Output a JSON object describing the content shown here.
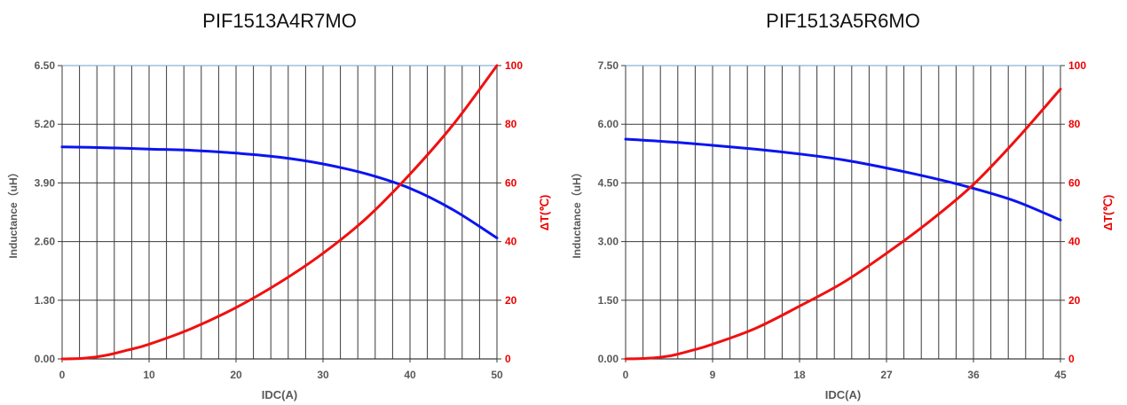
{
  "chart_data": [
    {
      "type": "line",
      "title": "PIF1513A4R7MO",
      "xlabel": "IDC(A)",
      "ylabel": "Inductance（uH）",
      "y2label": "ΔT(℃)",
      "xlim": [
        0,
        50
      ],
      "ylim": [
        0,
        6.5
      ],
      "y2lim": [
        0,
        100
      ],
      "x_ticks": [
        "0",
        "10",
        "20",
        "30",
        "40",
        "50"
      ],
      "y_ticks": [
        "0.00",
        "1.30",
        "2.60",
        "3.90",
        "5.20",
        "6.50"
      ],
      "y2_ticks": [
        "0",
        "20",
        "40",
        "60",
        "80",
        "100"
      ],
      "grid": true,
      "series": [
        {
          "color": "#0a14f0",
          "axis": "left",
          "x": [
            0,
            5,
            10,
            15,
            20,
            25,
            30,
            35,
            40,
            45,
            50
          ],
          "y": [
            4.7,
            4.68,
            4.65,
            4.62,
            4.56,
            4.47,
            4.32,
            4.1,
            3.78,
            3.3,
            2.68
          ]
        },
        {
          "color": "#f01010",
          "axis": "right",
          "x": [
            0,
            2.5,
            5,
            7.5,
            10,
            15,
            20,
            25,
            30,
            35,
            40,
            45,
            50
          ],
          "y": [
            0,
            0.2,
            1.2,
            3,
            5,
            10.5,
            17.5,
            26,
            36,
            48,
            63,
            80,
            100
          ]
        }
      ]
    },
    {
      "type": "line",
      "title": "PIF1513A5R6MO",
      "xlabel": "IDC(A)",
      "ylabel": "Inductance（uH）",
      "y2label": "ΔT(℃)",
      "xlim": [
        0,
        45
      ],
      "ylim": [
        0,
        7.5
      ],
      "y2lim": [
        0,
        100
      ],
      "x_ticks": [
        "0",
        "9",
        "18",
        "27",
        "36",
        "45"
      ],
      "y_ticks": [
        "0.00",
        "1.50",
        "3.00",
        "4.50",
        "6.00",
        "7.50"
      ],
      "y2_ticks": [
        "0",
        "20",
        "40",
        "60",
        "80",
        "100"
      ],
      "grid": true,
      "series": [
        {
          "color": "#0a14f0",
          "axis": "left",
          "x": [
            0,
            4.5,
            9,
            13.5,
            18,
            22.5,
            27,
            31.5,
            36,
            40.5,
            45
          ],
          "y": [
            5.62,
            5.55,
            5.46,
            5.36,
            5.24,
            5.09,
            4.88,
            4.64,
            4.36,
            4.02,
            3.55
          ]
        },
        {
          "color": "#f01010",
          "axis": "right",
          "x": [
            0,
            2.25,
            4.5,
            6.75,
            9,
            13.5,
            18,
            22.5,
            27,
            31.5,
            36,
            40.5,
            45
          ],
          "y": [
            0,
            0.2,
            1,
            2.8,
            5,
            10.5,
            18,
            26,
            36,
            47,
            59.5,
            75,
            92
          ]
        }
      ]
    }
  ]
}
